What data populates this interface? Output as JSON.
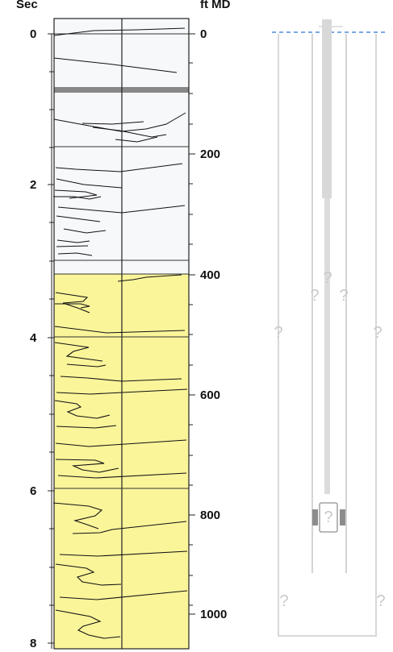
{
  "log_panel": {
    "left_axis_title": "Sec",
    "right_axis_title": "ft MD",
    "left_ticks": [
      "0",
      "2",
      "4",
      "6",
      "8"
    ],
    "right_ticks": [
      "0",
      "200",
      "400",
      "600",
      "800",
      "1000"
    ],
    "colors": {
      "upper_zone_fill": "#f7f8fa",
      "lower_zone_fill": "#fbf59a",
      "curve": "#111111",
      "band_mark": "#888888",
      "grid": "#222222"
    }
  },
  "well_schematic": {
    "unknown_marks": [
      "?",
      "?",
      "?",
      "?",
      "?",
      "?",
      "?",
      "?"
    ],
    "colors": {
      "outline": "#d6d6d6",
      "tubing": "#d8d8d8",
      "datum_line": "#2b74d8",
      "question": "#c9c9c9",
      "packer": "#8c8c8c"
    }
  }
}
